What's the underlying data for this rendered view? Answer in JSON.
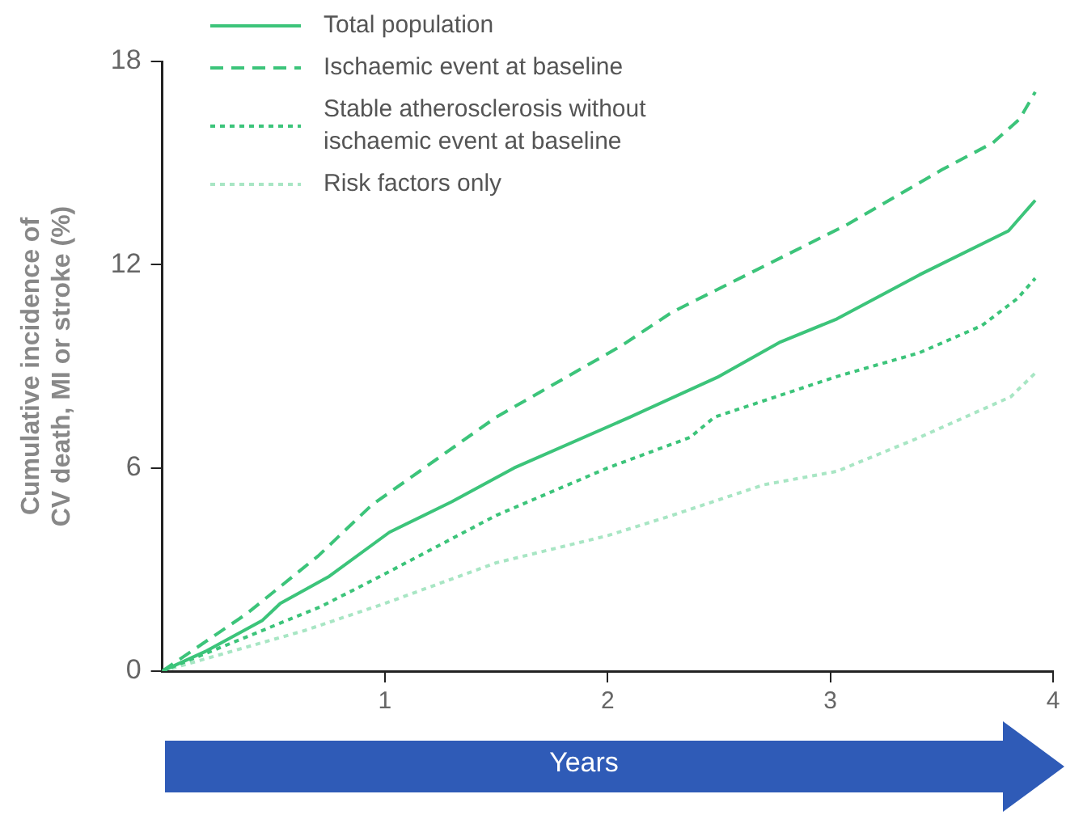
{
  "chart_data": {
    "type": "line",
    "xlabel": "Years",
    "ylabel": "Cumulative incidence of CV death, MI or stroke (%)",
    "xlim": [
      0,
      4
    ],
    "xticks": [
      1,
      2,
      3,
      4
    ],
    "ylim": [
      0,
      18
    ],
    "yticks": [
      0,
      6,
      12,
      18
    ],
    "grid": false,
    "legend": "top left",
    "marker": "none",
    "series": [
      {
        "name": "Total population",
        "color": "#3cc47a",
        "line_style": "solid",
        "x": [
          0,
          0.2,
          0.45,
          0.53,
          0.75,
          1.02,
          1.3,
          1.58,
          2.1,
          2.5,
          2.77,
          3.03,
          3.4,
          3.8,
          3.92
        ],
        "values": [
          0,
          0.6,
          1.5,
          2.0,
          2.8,
          4.1,
          5.0,
          6.0,
          7.5,
          8.7,
          9.7,
          10.4,
          11.7,
          13.0,
          13.9
        ]
      },
      {
        "name": "Ischaemic event at baseline",
        "color": "#3cc47a",
        "line_style": "dashed",
        "x": [
          0,
          0.38,
          0.7,
          0.94,
          1.5,
          2.06,
          2.29,
          3.08,
          3.5,
          3.73,
          3.85,
          3.92
        ],
        "values": [
          0,
          1.7,
          3.4,
          4.9,
          7.5,
          9.6,
          10.6,
          13.2,
          14.8,
          15.6,
          16.3,
          17.1
        ]
      },
      {
        "name": "Stable atherosclerosis without ischaemic event at baseline",
        "color": "#3cc47a",
        "line_style": "dotted",
        "x": [
          0,
          0.3,
          0.71,
          0.95,
          1.5,
          2.0,
          2.37,
          2.48,
          3.03,
          3.4,
          3.68,
          3.84,
          3.92
        ],
        "values": [
          0,
          0.8,
          1.9,
          2.7,
          4.6,
          6.0,
          6.9,
          7.5,
          8.7,
          9.4,
          10.2,
          11.0,
          11.6
        ]
      },
      {
        "name": "Risk factors only",
        "color": "#a8e6c4",
        "line_style": "dotted",
        "x": [
          0,
          0.64,
          1.0,
          1.5,
          2.0,
          2.29,
          2.7,
          3.03,
          3.4,
          3.81,
          3.92
        ],
        "values": [
          0,
          1.2,
          2.0,
          3.2,
          4.0,
          4.6,
          5.5,
          5.9,
          6.9,
          8.1,
          8.8
        ]
      }
    ]
  }
}
